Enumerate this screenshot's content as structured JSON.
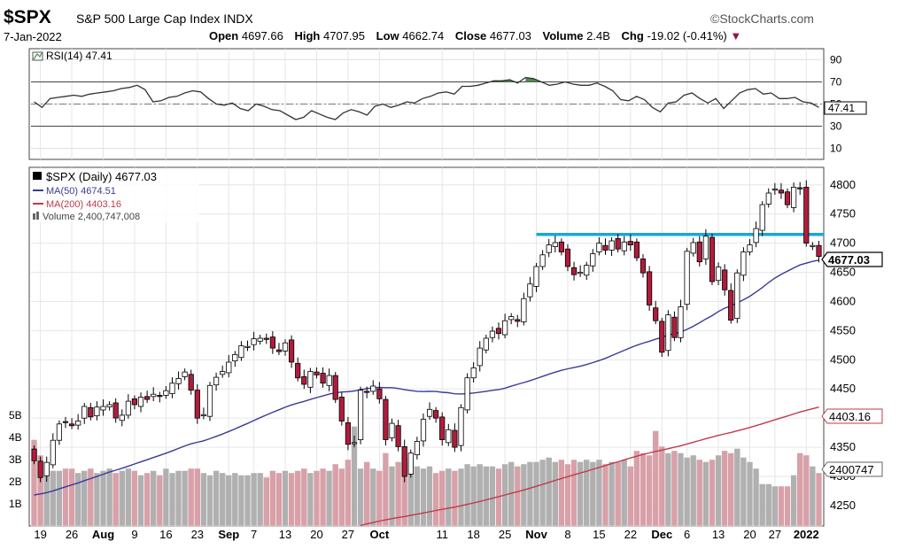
{
  "header": {
    "symbol": "$SPX",
    "name": "S&P 500 Large Cap Index INDX",
    "brand": "©StockCharts.com",
    "date": "7-Jan-2022",
    "open_label": "Open",
    "open": "4697.66",
    "high_label": "High",
    "high": "4707.95",
    "low_label": "Low",
    "low": "4662.74",
    "close_label": "Close",
    "close": "4677.03",
    "volume_label": "Volume",
    "volume": "2.4B",
    "chg_label": "Chg",
    "chg": "-19.02 (-0.41%)",
    "chg_arrow": "▼"
  },
  "colors": {
    "up": "#ffffff",
    "down": "#b01c3c",
    "ma50": "#3a3a9a",
    "ma200": "#c03a4a",
    "resistance": "#1aa6dd",
    "vol_up": "#b0b0b0",
    "vol_down": "#d8a0a8",
    "rsi_fill": "#4e8a4e"
  },
  "chart_data": [
    {
      "type": "line",
      "title": "RSI(14) 47.41",
      "y_ticks": [
        "90",
        "70",
        "50",
        "30",
        "10"
      ],
      "reference_lines": [
        70,
        30
      ],
      "last_value_tag": "47.41",
      "ylim": [
        0,
        100
      ],
      "values": [
        52,
        47,
        55,
        56,
        57,
        58,
        57,
        59,
        60,
        61,
        62,
        64,
        65,
        67,
        63,
        52,
        53,
        56,
        57,
        60,
        62,
        61,
        55,
        50,
        49,
        51,
        46,
        44,
        50,
        48,
        45,
        44,
        40,
        36,
        38,
        44,
        41,
        38,
        36,
        42,
        45,
        43,
        40,
        48,
        50,
        47,
        49,
        52,
        51,
        55,
        57,
        60,
        61,
        59,
        66,
        66,
        67,
        69,
        71,
        71,
        72,
        69,
        74,
        73,
        70,
        67,
        68,
        70,
        68,
        67,
        67,
        69,
        66,
        62,
        54,
        53,
        57,
        54,
        47,
        43,
        51,
        52,
        58,
        60,
        55,
        51,
        55,
        46,
        53,
        60,
        63,
        64,
        59,
        60,
        55,
        55,
        56,
        52,
        51,
        47
      ]
    },
    {
      "type": "candlestick",
      "title": "$SPX (Daily) 4677.03",
      "legend": [
        {
          "name": "MA(50) 4674.51",
          "color": "#3a3a9a"
        },
        {
          "name": "MA(200) 4403.16",
          "color": "#c03a4a"
        },
        {
          "name": "Volume 2,400,747,008",
          "color": "#808080"
        }
      ],
      "ylim": [
        4215,
        4830
      ],
      "y_ticks": [
        "4800",
        "4750",
        "4700",
        "4650",
        "4600",
        "4550",
        "4500",
        "4450",
        "4400",
        "4350",
        "4300",
        "4250"
      ],
      "volume_ticks": [
        "5B",
        "4B",
        "3B",
        "2B",
        "1B"
      ],
      "x_tick_labels": [
        "19",
        "26",
        "Aug",
        "9",
        "16",
        "23",
        "Sep",
        "7",
        "13",
        "20",
        "27",
        "Oct",
        "11",
        "18",
        "25",
        "Nov",
        "8",
        "15",
        "22",
        "Dec",
        "6",
        "13",
        "20",
        "27",
        "2022"
      ],
      "x_tick_index": [
        1,
        6,
        11,
        16,
        21,
        26,
        31,
        35,
        40,
        45,
        50,
        55,
        65,
        70,
        75,
        80,
        85,
        90,
        95,
        100,
        104,
        109,
        114,
        118,
        123
      ],
      "resistance_level": 4715,
      "tags": {
        "close": "4677.03",
        "ma200": "4403.16",
        "volume": "2400747"
      },
      "close": [
        4327,
        4298,
        4324,
        4362,
        4390,
        4393,
        4387,
        4395,
        4420,
        4402,
        4419,
        4420,
        4423,
        4400,
        4405,
        4429,
        4423,
        4436,
        4432,
        4441,
        4437,
        4447,
        4460,
        4468,
        4479,
        4448,
        4400,
        4406,
        4456,
        4470,
        4480,
        4496,
        4509,
        4524,
        4523,
        4536,
        4537,
        4535,
        4520,
        4514,
        4529,
        4496,
        4469,
        4458,
        4480,
        4474,
        4460,
        4473,
        4432,
        4395,
        4355,
        4358,
        4448,
        4444,
        4455,
        4433,
        4363,
        4391,
        4351,
        4300,
        4340,
        4360,
        4398,
        4415,
        4400,
        4363,
        4380,
        4350,
        4418,
        4469,
        4486,
        4520,
        4537,
        4549,
        4545,
        4567,
        4574,
        4566,
        4605,
        4630,
        4660,
        4680,
        4697,
        4701,
        4685,
        4660,
        4646,
        4650,
        4662,
        4682,
        4700,
        4688,
        4704,
        4690,
        4702,
        4697,
        4675,
        4649,
        4594,
        4567,
        4513,
        4577,
        4538,
        4591,
        4686,
        4701,
        4668,
        4712,
        4634,
        4659,
        4620,
        4568,
        4649,
        4685,
        4697,
        4725,
        4766,
        4786,
        4793,
        4786,
        4766,
        4796,
        4793,
        4700,
        4696,
        4677
      ],
      "volume_billions": [
        3.9,
        3.2,
        2.3,
        2.5,
        2.5,
        2.6,
        2.6,
        2.4,
        2.5,
        2.6,
        2.4,
        2.5,
        2.6,
        2.4,
        2.5,
        2.6,
        2.5,
        2.3,
        2.4,
        2.5,
        2.3,
        2.6,
        2.4,
        2.5,
        2.5,
        2.6,
        2.6,
        2.4,
        2.3,
        2.5,
        2.4,
        2.3,
        2.4,
        2.3,
        2.3,
        2.4,
        2.4,
        2.2,
        2.5,
        2.4,
        2.5,
        2.4,
        2.5,
        2.6,
        2.4,
        2.5,
        2.6,
        2.5,
        2.8,
        2.6,
        3.0,
        4.5,
        2.6,
        2.9,
        2.6,
        2.5,
        3.3,
        2.7,
        2.9,
        3.1,
        2.9,
        2.7,
        2.6,
        2.7,
        2.4,
        2.5,
        2.6,
        2.5,
        2.6,
        2.8,
        2.7,
        2.8,
        2.7,
        2.7,
        2.6,
        2.8,
        2.9,
        2.7,
        2.8,
        2.9,
        2.9,
        3.0,
        3.1,
        2.9,
        3.0,
        2.8,
        3.0,
        2.9,
        3.0,
        2.9,
        3.0,
        2.8,
        2.9,
        2.9,
        3.0,
        2.7,
        3.4,
        3.3,
        3.2,
        4.3,
        3.6,
        3.3,
        3.4,
        3.3,
        3.1,
        3.2,
        3.0,
        2.9,
        3.0,
        3.2,
        3.4,
        3.3,
        3.5,
        3.1,
        2.9,
        2.6,
        1.9,
        1.9,
        1.8,
        1.8,
        1.8,
        2.3,
        3.3,
        3.2,
        2.7,
        2.4
      ]
    }
  ]
}
